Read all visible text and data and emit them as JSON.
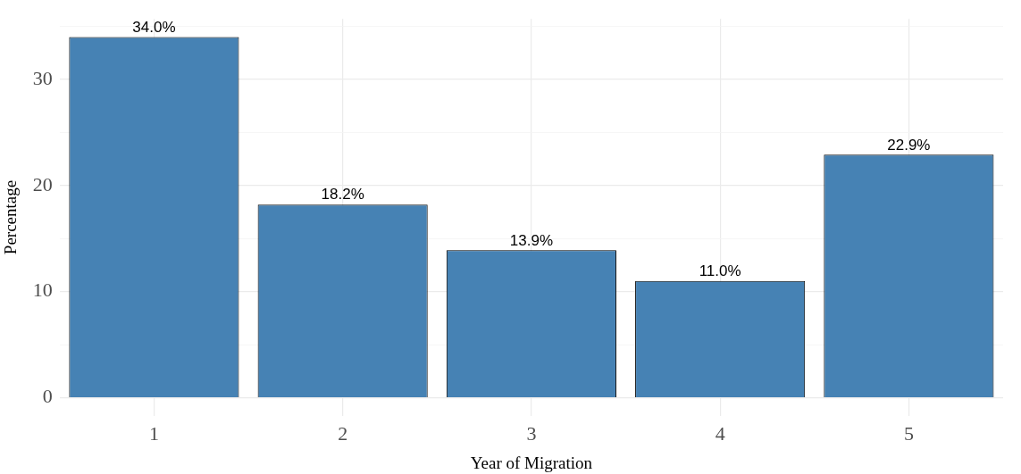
{
  "chart_data": {
    "type": "bar",
    "xlabel": "Year of Migration",
    "ylabel": "Percentage",
    "categories": [
      "1",
      "2",
      "3",
      "4",
      "5"
    ],
    "values": [
      34.0,
      18.2,
      13.9,
      11.0,
      22.9
    ],
    "value_labels": [
      "34.0%",
      "18.2%",
      "13.9%",
      "11.0%",
      "22.9%"
    ],
    "color": "#4682b4",
    "ylim": [
      -1.7,
      35.7
    ],
    "yticks": [
      0,
      {
        "value": 5,
        "label": null
      },
      10,
      {
        "value": 15,
        "label": null
      },
      20,
      {
        "value": 25,
        "label": null
      },
      30,
      {
        "value": 35,
        "label": null
      }
    ],
    "grid": true,
    "legend": false
  }
}
